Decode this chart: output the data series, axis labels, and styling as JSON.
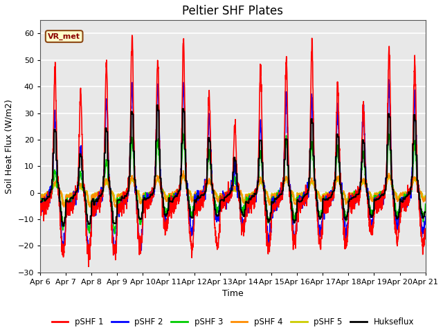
{
  "title": "Peltier SHF Plates",
  "xlabel": "Time",
  "ylabel": "Soil Heat Flux (W/m2)",
  "ylim": [
    -30,
    65
  ],
  "yticks": [
    -30,
    -20,
    -10,
    0,
    10,
    20,
    30,
    40,
    50,
    60
  ],
  "xtick_labels": [
    "Apr 6",
    "Apr 7",
    "Apr 8",
    "Apr 9",
    "Apr 10",
    "Apr 11",
    "Apr 12",
    "Apr 13",
    "Apr 14",
    "Apr 15",
    "Apr 16",
    "Apr 17",
    "Apr 18",
    "Apr 19",
    "Apr 20",
    "Apr 21"
  ],
  "legend_labels": [
    "pSHF 1",
    "pSHF 2",
    "pSHF 3",
    "pSHF 4",
    "pSHF 5",
    "Hukseflux"
  ],
  "line_colors": [
    "#FF0000",
    "#0000FF",
    "#00CC00",
    "#FF8C00",
    "#CCCC00",
    "#000000"
  ],
  "line_widths": [
    1.2,
    1.2,
    1.2,
    1.2,
    1.2,
    1.5
  ],
  "annotation_text": "VR_met",
  "annotation_box_facecolor": "#FFFFCC",
  "annotation_box_edgecolor": "#8B4513",
  "plot_bg_color": "#E8E8E8",
  "grid_color": "#FFFFFF",
  "title_fontsize": 12,
  "axis_label_fontsize": 9,
  "tick_fontsize": 8
}
